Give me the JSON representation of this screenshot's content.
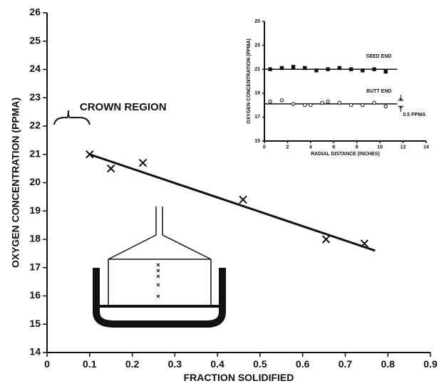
{
  "chart_data": [
    {
      "type": "scatter",
      "xlabel": "FRACTION SOLIDIFIED",
      "ylabel": "OXYGEN CONCENTRATION (PPMA)",
      "xlim": [
        0,
        0.9
      ],
      "ylim": [
        14,
        26
      ],
      "xticks": [
        0,
        0.1,
        0.2,
        0.3,
        0.4,
        0.5,
        0.6,
        0.7,
        0.8,
        0.9
      ],
      "yticks": [
        14,
        15,
        16,
        17,
        18,
        19,
        20,
        21,
        22,
        23,
        24,
        25,
        26
      ],
      "color": "#111111",
      "series": [
        {
          "marker": "x",
          "x": [
            0.1,
            0.15,
            0.225,
            0.46,
            0.655,
            0.745
          ],
          "y": [
            21.0,
            20.5,
            20.7,
            19.4,
            18.0,
            17.85
          ],
          "fit": {
            "x": [
              0.1,
              0.77
            ],
            "y": [
              21.0,
              17.6
            ]
          }
        }
      ],
      "annotations": [
        {
          "text": "CROWN REGION",
          "x": 0.05,
          "y": 22.3
        }
      ]
    },
    {
      "type": "scatter",
      "xlabel": "RADIAL DISTANCE (INCHES)",
      "ylabel": "OXYGEN CONCENTRATION (PPMA)",
      "xlim": [
        0,
        14
      ],
      "ylim": [
        15,
        25
      ],
      "xticks": [
        0,
        2,
        4,
        6,
        8,
        10,
        12,
        14
      ],
      "yticks": [
        15,
        17,
        19,
        21,
        23,
        25
      ],
      "color": "#111111",
      "series": [
        {
          "name": "SEED END",
          "marker": "square",
          "x": [
            0.5,
            1.5,
            2.5,
            3.5,
            4.5,
            5.5,
            6.5,
            7.5,
            8.5,
            9.5,
            10.5
          ],
          "y": [
            21.0,
            21.1,
            21.2,
            21.1,
            20.9,
            21.0,
            21.1,
            21.0,
            20.9,
            21.0,
            20.8
          ],
          "fit": {
            "x": [
              0,
              11.5
            ],
            "y": [
              21.0,
              21.0
            ]
          }
        },
        {
          "name": "BUTT END",
          "marker": "circle",
          "x": [
            0.5,
            1.5,
            2.5,
            3.5,
            4.0,
            5.0,
            5.5,
            6.5,
            7.5,
            8.5,
            9.5,
            10.5
          ],
          "y": [
            18.3,
            18.4,
            18.1,
            18.0,
            18.0,
            18.2,
            18.3,
            18.2,
            18.0,
            18.0,
            18.2,
            17.9
          ],
          "fit": {
            "x": [
              0,
              11.5
            ],
            "y": [
              18.1,
              18.1
            ]
          }
        }
      ],
      "annotations": [
        {
          "text": "0.5 PPMA",
          "x": 11.8,
          "y": 17.9
        }
      ]
    }
  ]
}
